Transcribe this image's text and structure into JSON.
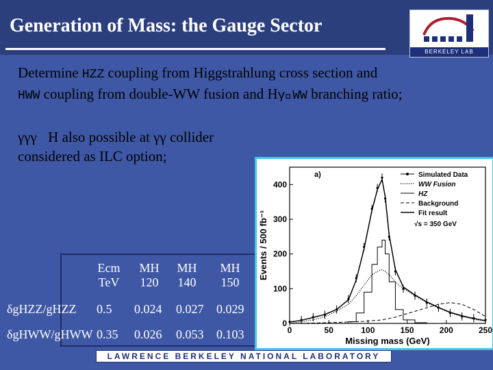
{
  "slide": {
    "title": "Generation of Mass: the Gauge Sector",
    "logo_text": "BERKELEY LAB",
    "paragraph1": {
      "t1": "Determine ",
      "m1": "HZZ",
      "t2": " coupling from Higgstrahlung cross section and",
      "m2": "HWW",
      "t3": " coupling from double-WW fusion and H",
      "m3": "γ\u0000WW",
      "t4": " branching ratio;"
    },
    "paragraph2": {
      "line1": "γγγ\u0000H also possible at γγ collider",
      "line2": "considered as ILC option;"
    },
    "footer": "LAWRENCE BERKELEY NATIONAL LABORATORY"
  },
  "table": {
    "headers": [
      {
        "top": "Ecm",
        "bottom": "TeV"
      },
      {
        "top": "MH",
        "bottom": "120"
      },
      {
        "top": "MH",
        "bottom": "140"
      },
      {
        "top": "MH",
        "bottom": "150"
      }
    ],
    "rows": [
      {
        "label": "δgHZZ/gHZZ",
        "values": [
          "0.5",
          "0.024",
          "0.027",
          "0.029"
        ]
      },
      {
        "label": "δgHWW/gHWW",
        "values": [
          "0.35",
          "0.026",
          "0.053",
          "0.103"
        ]
      }
    ]
  },
  "chart_data": {
    "type": "line",
    "panel_label": "a)",
    "xlabel": "Missing mass (GeV)",
    "ylabel": "Events / 500 fb⁻¹",
    "xlim": [
      0,
      250
    ],
    "ylim": [
      0,
      450
    ],
    "x_ticks": [
      0,
      50,
      100,
      150,
      200,
      250
    ],
    "y_ticks": [
      0,
      100,
      200,
      300,
      400
    ],
    "legend": [
      "Simulated Data",
      "WW Fusion",
      "HZ",
      "Background",
      "Fit result"
    ],
    "annotation": "√s = 350 GeV",
    "x": [
      0,
      15,
      30,
      45,
      60,
      75,
      85,
      95,
      105,
      112,
      118,
      122,
      127,
      135,
      145,
      160,
      175,
      190,
      205,
      220,
      235,
      250
    ],
    "series": [
      {
        "name": "Simulated Data",
        "values": [
          5,
          10,
          18,
          25,
          40,
          70,
          130,
          220,
          330,
          390,
          420,
          360,
          250,
          150,
          100,
          80,
          60,
          45,
          30,
          20,
          15,
          10
        ]
      },
      {
        "name": "WW Fusion",
        "values": [
          0,
          5,
          10,
          20,
          35,
          55,
          80,
          110,
          140,
          150,
          155,
          150,
          140,
          120,
          100,
          80,
          60,
          45,
          30,
          20,
          12,
          6
        ]
      },
      {
        "name": "HZ",
        "values": [
          0,
          0,
          0,
          0,
          0,
          5,
          30,
          90,
          170,
          220,
          240,
          200,
          120,
          40,
          10,
          2,
          0,
          0,
          0,
          0,
          0,
          0
        ]
      },
      {
        "name": "Background",
        "values": [
          0,
          0,
          1,
          2,
          3,
          4,
          5,
          6,
          8,
          9,
          10,
          12,
          14,
          18,
          25,
          35,
          45,
          55,
          60,
          55,
          40,
          20
        ]
      },
      {
        "name": "Fit result",
        "values": [
          4,
          9,
          17,
          26,
          40,
          68,
          125,
          215,
          325,
          385,
          415,
          365,
          255,
          155,
          105,
          82,
          62,
          46,
          32,
          22,
          14,
          8
        ]
      }
    ]
  }
}
